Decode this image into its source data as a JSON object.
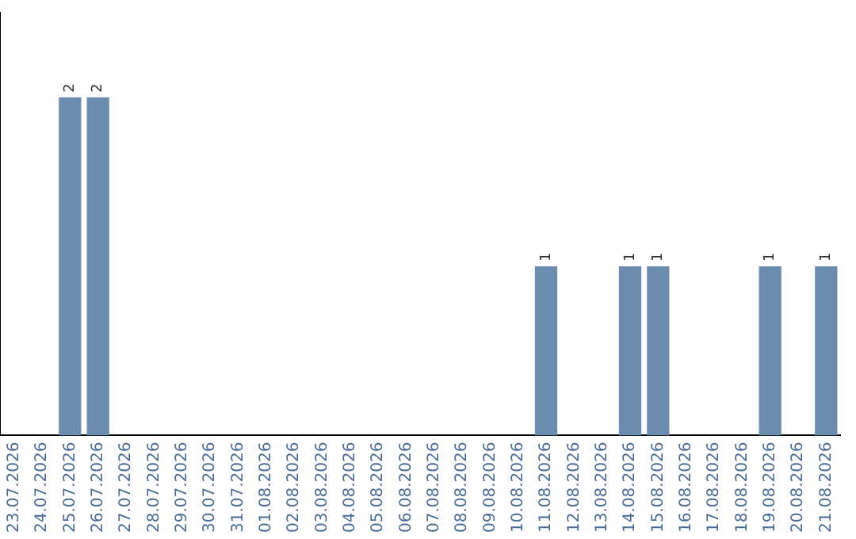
{
  "chart_data": {
    "type": "bar",
    "categories": [
      "23.07.2026",
      "24.07.2026",
      "25.07.2026",
      "26.07.2026",
      "27.07.2026",
      "28.07.2026",
      "29.07.2026",
      "30.07.2026",
      "31.07.2026",
      "01.08.2026",
      "02.08.2026",
      "03.08.2026",
      "04.08.2026",
      "05.08.2026",
      "06.08.2026",
      "07.08.2026",
      "08.08.2026",
      "09.08.2026",
      "10.08.2026",
      "11.08.2026",
      "12.08.2026",
      "13.08.2026",
      "14.08.2026",
      "15.08.2026",
      "16.08.2026",
      "17.08.2026",
      "18.08.2026",
      "19.08.2026",
      "20.08.2026",
      "21.08.2026"
    ],
    "values": [
      0,
      0,
      2,
      2,
      0,
      0,
      0,
      0,
      0,
      0,
      0,
      0,
      0,
      0,
      0,
      0,
      0,
      0,
      0,
      1,
      0,
      0,
      1,
      1,
      0,
      0,
      0,
      1,
      0,
      1
    ],
    "color": "#6a8caf",
    "value_labels": [
      null,
      null,
      "2",
      "2",
      null,
      null,
      null,
      null,
      null,
      null,
      null,
      null,
      null,
      null,
      null,
      null,
      null,
      null,
      null,
      "1",
      null,
      null,
      "1",
      "1",
      null,
      null,
      null,
      "1",
      null,
      "1"
    ],
    "grid": false,
    "legend": false
  }
}
